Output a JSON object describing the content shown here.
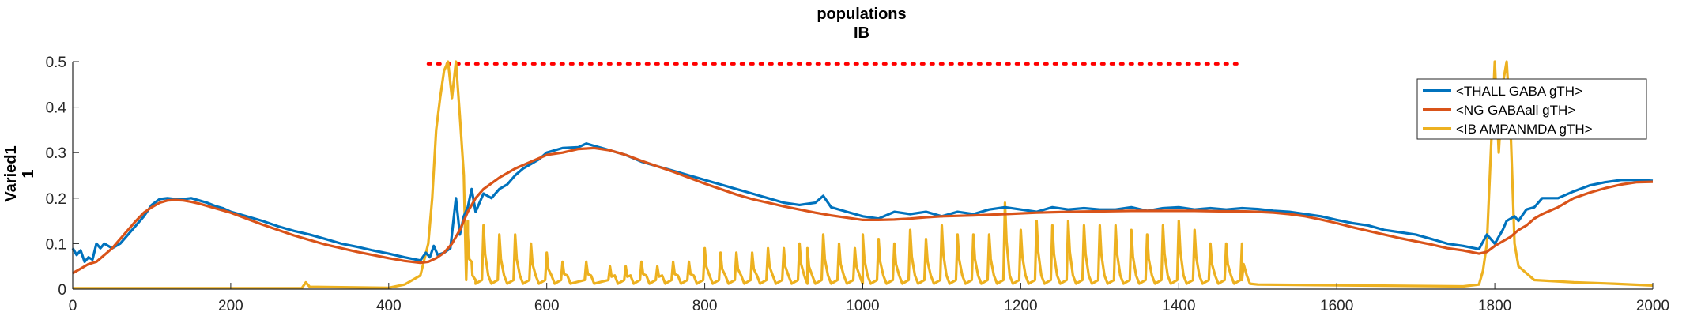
{
  "chart_data": {
    "type": "line",
    "title": [
      "populations",
      "IB"
    ],
    "ylabel": [
      "Varied1",
      "1"
    ],
    "xlabel": "",
    "xlim": [
      0,
      2000
    ],
    "ylim": [
      0,
      0.5
    ],
    "xticks": [
      0,
      200,
      400,
      600,
      800,
      1000,
      1200,
      1400,
      1600,
      1800,
      2000
    ],
    "yticks": [
      0,
      0.1,
      0.2,
      0.3,
      0.4,
      0.5
    ],
    "ytick_labels": [
      "0",
      "0.1",
      "0.2",
      "0.3",
      "0.4",
      "0.5"
    ],
    "legend_position": "top-right",
    "legend": [
      "<THALL GABA gTH>",
      "<NG GABAall gTH>",
      "<IB AMPANMDA gTH>"
    ],
    "reference_line": {
      "style": "dotted",
      "color": "#ff0000",
      "y": 0.495,
      "x": [
        450,
        1480
      ]
    },
    "series": [
      {
        "name": "<THALL GABA gTH>",
        "color": "#0072bd",
        "x": [
          0,
          5,
          10,
          15,
          20,
          25,
          30,
          35,
          40,
          50,
          60,
          70,
          80,
          90,
          100,
          110,
          120,
          130,
          140,
          150,
          160,
          170,
          180,
          190,
          200,
          220,
          240,
          260,
          280,
          300,
          320,
          340,
          360,
          380,
          400,
          420,
          440,
          447,
          452,
          457,
          462,
          470,
          478,
          485,
          490,
          495,
          500,
          505,
          510,
          520,
          530,
          540,
          550,
          560,
          570,
          580,
          590,
          600,
          620,
          640,
          650,
          660,
          670,
          680,
          700,
          720,
          740,
          760,
          780,
          800,
          820,
          840,
          860,
          880,
          900,
          920,
          940,
          950,
          960,
          980,
          1000,
          1020,
          1040,
          1060,
          1080,
          1100,
          1120,
          1140,
          1160,
          1180,
          1200,
          1220,
          1240,
          1260,
          1280,
          1300,
          1320,
          1340,
          1360,
          1380,
          1400,
          1420,
          1440,
          1460,
          1480,
          1500,
          1520,
          1540,
          1560,
          1580,
          1600,
          1620,
          1640,
          1660,
          1680,
          1700,
          1720,
          1740,
          1760,
          1780,
          1790,
          1800,
          1810,
          1815,
          1820,
          1825,
          1830,
          1840,
          1850,
          1860,
          1880,
          1900,
          1920,
          1940,
          1960,
          1980,
          2000
        ],
        "values": [
          0.09,
          0.075,
          0.085,
          0.06,
          0.07,
          0.065,
          0.1,
          0.09,
          0.1,
          0.09,
          0.1,
          0.12,
          0.14,
          0.16,
          0.185,
          0.198,
          0.2,
          0.198,
          0.198,
          0.2,
          0.195,
          0.19,
          0.183,
          0.178,
          0.17,
          0.16,
          0.15,
          0.138,
          0.128,
          0.12,
          0.11,
          0.1,
          0.093,
          0.085,
          0.078,
          0.07,
          0.063,
          0.08,
          0.07,
          0.095,
          0.075,
          0.08,
          0.09,
          0.2,
          0.12,
          0.16,
          0.18,
          0.22,
          0.17,
          0.21,
          0.2,
          0.22,
          0.23,
          0.25,
          0.265,
          0.275,
          0.285,
          0.3,
          0.31,
          0.312,
          0.32,
          0.315,
          0.31,
          0.305,
          0.295,
          0.28,
          0.27,
          0.26,
          0.25,
          0.24,
          0.23,
          0.22,
          0.21,
          0.2,
          0.19,
          0.185,
          0.19,
          0.205,
          0.18,
          0.17,
          0.16,
          0.155,
          0.17,
          0.165,
          0.17,
          0.16,
          0.17,
          0.165,
          0.175,
          0.18,
          0.175,
          0.17,
          0.18,
          0.175,
          0.178,
          0.175,
          0.175,
          0.18,
          0.172,
          0.178,
          0.18,
          0.175,
          0.178,
          0.175,
          0.178,
          0.176,
          0.172,
          0.17,
          0.165,
          0.16,
          0.152,
          0.145,
          0.14,
          0.13,
          0.125,
          0.12,
          0.11,
          0.1,
          0.095,
          0.088,
          0.12,
          0.1,
          0.13,
          0.15,
          0.155,
          0.16,
          0.15,
          0.175,
          0.18,
          0.2,
          0.2,
          0.215,
          0.228,
          0.235,
          0.24,
          0.24,
          0.238
        ]
      },
      {
        "name": "<NG GABAall gTH>",
        "color": "#d95319",
        "x": [
          0,
          10,
          20,
          30,
          40,
          50,
          60,
          70,
          80,
          90,
          100,
          110,
          120,
          130,
          140,
          150,
          160,
          180,
          200,
          220,
          240,
          260,
          280,
          300,
          320,
          340,
          360,
          380,
          400,
          420,
          440,
          450,
          460,
          470,
          480,
          490,
          500,
          510,
          520,
          540,
          560,
          580,
          600,
          620,
          640,
          660,
          680,
          700,
          720,
          740,
          760,
          780,
          800,
          820,
          840,
          860,
          880,
          900,
          920,
          940,
          960,
          980,
          1000,
          1020,
          1040,
          1060,
          1080,
          1100,
          1140,
          1180,
          1220,
          1260,
          1300,
          1340,
          1380,
          1420,
          1460,
          1480,
          1500,
          1520,
          1540,
          1560,
          1580,
          1600,
          1620,
          1640,
          1660,
          1680,
          1700,
          1720,
          1740,
          1760,
          1780,
          1790,
          1800,
          1810,
          1820,
          1830,
          1840,
          1850,
          1860,
          1880,
          1900,
          1920,
          1940,
          1960,
          1980,
          2000
        ],
        "values": [
          0.035,
          0.045,
          0.055,
          0.06,
          0.075,
          0.09,
          0.11,
          0.13,
          0.15,
          0.168,
          0.18,
          0.19,
          0.195,
          0.196,
          0.195,
          0.192,
          0.188,
          0.178,
          0.168,
          0.155,
          0.142,
          0.13,
          0.118,
          0.108,
          0.098,
          0.09,
          0.082,
          0.075,
          0.068,
          0.062,
          0.058,
          0.06,
          0.068,
          0.08,
          0.1,
          0.13,
          0.17,
          0.2,
          0.22,
          0.245,
          0.265,
          0.28,
          0.295,
          0.3,
          0.308,
          0.31,
          0.305,
          0.295,
          0.282,
          0.27,
          0.258,
          0.245,
          0.232,
          0.22,
          0.208,
          0.198,
          0.19,
          0.182,
          0.175,
          0.168,
          0.162,
          0.157,
          0.152,
          0.152,
          0.153,
          0.155,
          0.158,
          0.16,
          0.162,
          0.165,
          0.168,
          0.17,
          0.171,
          0.172,
          0.172,
          0.172,
          0.171,
          0.171,
          0.17,
          0.168,
          0.165,
          0.16,
          0.153,
          0.145,
          0.136,
          0.128,
          0.12,
          0.112,
          0.105,
          0.098,
          0.09,
          0.085,
          0.078,
          0.082,
          0.095,
          0.105,
          0.115,
          0.13,
          0.14,
          0.155,
          0.165,
          0.18,
          0.2,
          0.212,
          0.222,
          0.23,
          0.235,
          0.236
        ]
      },
      {
        "name": "<IB AMPANMDA gTH>",
        "color": "#edb120",
        "baseline": 0.002,
        "baseline_segments": [
          [
            0,
            0.002
          ],
          [
            290,
            0.002
          ],
          [
            295,
            0.015
          ],
          [
            300,
            0.005
          ],
          [
            400,
            0.003
          ],
          [
            420,
            0.01
          ],
          [
            440,
            0.03
          ],
          [
            450,
            0.1
          ],
          [
            455,
            0.2
          ],
          [
            460,
            0.35
          ],
          [
            465,
            0.42
          ],
          [
            470,
            0.48
          ],
          [
            475,
            0.5
          ],
          [
            480,
            0.42
          ],
          [
            485,
            0.5
          ],
          [
            490,
            0.38
          ],
          [
            495,
            0.25
          ],
          [
            500,
            0.15
          ],
          [
            505,
            0.06
          ],
          [
            510,
            0.02
          ]
        ],
        "spikes": [
          [
            500,
            0.12
          ],
          [
            520,
            0.14
          ],
          [
            540,
            0.12
          ],
          [
            560,
            0.12
          ],
          [
            580,
            0.1
          ],
          [
            600,
            0.08
          ],
          [
            620,
            0.06
          ],
          [
            650,
            0.06
          ],
          [
            680,
            0.05
          ],
          [
            700,
            0.05
          ],
          [
            720,
            0.06
          ],
          [
            740,
            0.05
          ],
          [
            760,
            0.06
          ],
          [
            780,
            0.06
          ],
          [
            800,
            0.09
          ],
          [
            820,
            0.08
          ],
          [
            840,
            0.08
          ],
          [
            860,
            0.08
          ],
          [
            880,
            0.09
          ],
          [
            900,
            0.09
          ],
          [
            920,
            0.1
          ],
          [
            930,
            0.09
          ],
          [
            950,
            0.12
          ],
          [
            970,
            0.1
          ],
          [
            990,
            0.09
          ],
          [
            1000,
            0.12
          ],
          [
            1020,
            0.11
          ],
          [
            1040,
            0.1
          ],
          [
            1060,
            0.13
          ],
          [
            1080,
            0.11
          ],
          [
            1100,
            0.14
          ],
          [
            1120,
            0.12
          ],
          [
            1140,
            0.12
          ],
          [
            1160,
            0.12
          ],
          [
            1180,
            0.19
          ],
          [
            1200,
            0.13
          ],
          [
            1220,
            0.15
          ],
          [
            1240,
            0.14
          ],
          [
            1260,
            0.15
          ],
          [
            1280,
            0.14
          ],
          [
            1300,
            0.14
          ],
          [
            1320,
            0.14
          ],
          [
            1340,
            0.13
          ],
          [
            1360,
            0.12
          ],
          [
            1380,
            0.14
          ],
          [
            1400,
            0.15
          ],
          [
            1420,
            0.13
          ],
          [
            1440,
            0.1
          ],
          [
            1460,
            0.1
          ],
          [
            1480,
            0.1
          ]
        ],
        "tail": [
          [
            1480,
            0.02
          ],
          [
            1500,
            0.01
          ],
          [
            1760,
            0.006
          ],
          [
            1780,
            0.01
          ],
          [
            1785,
            0.04
          ],
          [
            1790,
            0.1
          ],
          [
            1795,
            0.3
          ],
          [
            1800,
            0.5
          ],
          [
            1805,
            0.3
          ],
          [
            1810,
            0.45
          ],
          [
            1815,
            0.5
          ],
          [
            1820,
            0.35
          ],
          [
            1825,
            0.1
          ],
          [
            1830,
            0.05
          ],
          [
            1850,
            0.02
          ],
          [
            1900,
            0.015
          ],
          [
            1950,
            0.012
          ],
          [
            2000,
            0.008
          ]
        ]
      }
    ]
  }
}
